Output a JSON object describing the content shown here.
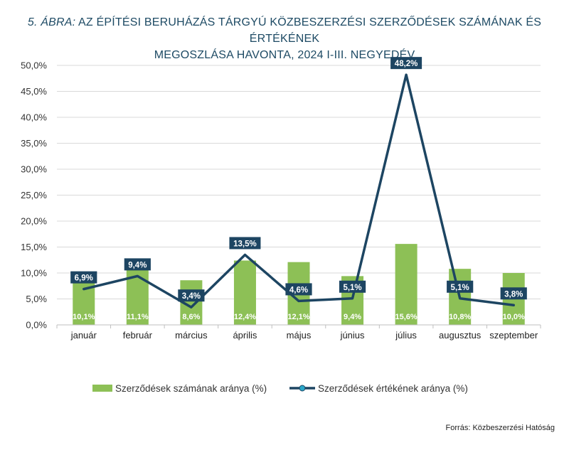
{
  "title_prefix": "5. ÁBRA:",
  "title_line1": "AZ ÉPÍTÉSI BERUHÁZÁS TÁRGYÚ KÖZBESZERZÉSI SZERZŐDÉSEK SZÁMÁNAK ÉS ÉRTÉKÉNEK",
  "title_line2": "MEGOSZLÁSA HAVONTA, 2024 I-III. NEGYEDÉV",
  "source": "Forrás: Közbeszerzési Hatóság",
  "chart_data": {
    "type": "bar",
    "categories": [
      "január",
      "február",
      "március",
      "április",
      "május",
      "június",
      "július",
      "augusztus",
      "szeptember"
    ],
    "series": [
      {
        "name": "Szerződések számának aránya (%)",
        "type": "bar",
        "values": [
          10.1,
          11.1,
          8.6,
          12.4,
          12.1,
          9.4,
          15.6,
          10.8,
          10.0
        ],
        "labels": [
          "10,1%",
          "11,1%",
          "8,6%",
          "12,4%",
          "12,1%",
          "9,4%",
          "15,6%",
          "10,8%",
          "10,0%"
        ],
        "color": "#8dc056"
      },
      {
        "name": "Szerződések értékének aránya (%)",
        "type": "line",
        "values": [
          6.9,
          9.4,
          3.4,
          13.5,
          4.6,
          5.1,
          48.2,
          5.1,
          3.8
        ],
        "labels": [
          "6,9%",
          "9,4%",
          "3,4%",
          "13,5%",
          "4,6%",
          "5,1%",
          "48,2%",
          "5,1%",
          "3,8%"
        ],
        "color": "#1d4562"
      }
    ],
    "ylim": [
      0,
      50
    ],
    "yticks": [
      0,
      5,
      10,
      15,
      20,
      25,
      30,
      35,
      40,
      45,
      50
    ],
    "ytick_labels": [
      "0,0%",
      "5,0%",
      "10,0%",
      "15,0%",
      "20,0%",
      "25,0%",
      "30,0%",
      "35,0%",
      "40,0%",
      "45,0%",
      "50,0%"
    ],
    "grid": true,
    "legend": "bottom"
  }
}
